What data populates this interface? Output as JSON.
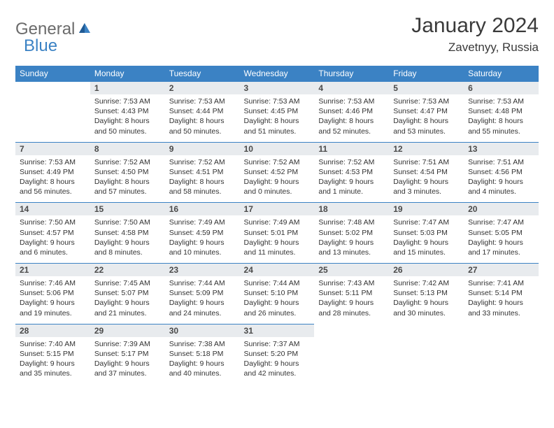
{
  "logo": {
    "name": "General",
    "accent": "Blue"
  },
  "title": "January 2024",
  "location": "Zavetnyy, Russia",
  "colors": {
    "header_bg": "#3b82c4",
    "header_fg": "#ffffff",
    "daynum_bg": "#e8ebee",
    "border": "#3b82c4",
    "logo_gray": "#6b6b6b",
    "logo_blue": "#3b82c4",
    "text": "#3a3a3a"
  },
  "day_headers": [
    "Sunday",
    "Monday",
    "Tuesday",
    "Wednesday",
    "Thursday",
    "Friday",
    "Saturday"
  ],
  "weeks": [
    [
      null,
      {
        "num": "1",
        "sunrise": "Sunrise: 7:53 AM",
        "sunset": "Sunset: 4:43 PM",
        "daylight1": "Daylight: 8 hours",
        "daylight2": "and 50 minutes."
      },
      {
        "num": "2",
        "sunrise": "Sunrise: 7:53 AM",
        "sunset": "Sunset: 4:44 PM",
        "daylight1": "Daylight: 8 hours",
        "daylight2": "and 50 minutes."
      },
      {
        "num": "3",
        "sunrise": "Sunrise: 7:53 AM",
        "sunset": "Sunset: 4:45 PM",
        "daylight1": "Daylight: 8 hours",
        "daylight2": "and 51 minutes."
      },
      {
        "num": "4",
        "sunrise": "Sunrise: 7:53 AM",
        "sunset": "Sunset: 4:46 PM",
        "daylight1": "Daylight: 8 hours",
        "daylight2": "and 52 minutes."
      },
      {
        "num": "5",
        "sunrise": "Sunrise: 7:53 AM",
        "sunset": "Sunset: 4:47 PM",
        "daylight1": "Daylight: 8 hours",
        "daylight2": "and 53 minutes."
      },
      {
        "num": "6",
        "sunrise": "Sunrise: 7:53 AM",
        "sunset": "Sunset: 4:48 PM",
        "daylight1": "Daylight: 8 hours",
        "daylight2": "and 55 minutes."
      }
    ],
    [
      {
        "num": "7",
        "sunrise": "Sunrise: 7:53 AM",
        "sunset": "Sunset: 4:49 PM",
        "daylight1": "Daylight: 8 hours",
        "daylight2": "and 56 minutes."
      },
      {
        "num": "8",
        "sunrise": "Sunrise: 7:52 AM",
        "sunset": "Sunset: 4:50 PM",
        "daylight1": "Daylight: 8 hours",
        "daylight2": "and 57 minutes."
      },
      {
        "num": "9",
        "sunrise": "Sunrise: 7:52 AM",
        "sunset": "Sunset: 4:51 PM",
        "daylight1": "Daylight: 8 hours",
        "daylight2": "and 58 minutes."
      },
      {
        "num": "10",
        "sunrise": "Sunrise: 7:52 AM",
        "sunset": "Sunset: 4:52 PM",
        "daylight1": "Daylight: 9 hours",
        "daylight2": "and 0 minutes."
      },
      {
        "num": "11",
        "sunrise": "Sunrise: 7:52 AM",
        "sunset": "Sunset: 4:53 PM",
        "daylight1": "Daylight: 9 hours",
        "daylight2": "and 1 minute."
      },
      {
        "num": "12",
        "sunrise": "Sunrise: 7:51 AM",
        "sunset": "Sunset: 4:54 PM",
        "daylight1": "Daylight: 9 hours",
        "daylight2": "and 3 minutes."
      },
      {
        "num": "13",
        "sunrise": "Sunrise: 7:51 AM",
        "sunset": "Sunset: 4:56 PM",
        "daylight1": "Daylight: 9 hours",
        "daylight2": "and 4 minutes."
      }
    ],
    [
      {
        "num": "14",
        "sunrise": "Sunrise: 7:50 AM",
        "sunset": "Sunset: 4:57 PM",
        "daylight1": "Daylight: 9 hours",
        "daylight2": "and 6 minutes."
      },
      {
        "num": "15",
        "sunrise": "Sunrise: 7:50 AM",
        "sunset": "Sunset: 4:58 PM",
        "daylight1": "Daylight: 9 hours",
        "daylight2": "and 8 minutes."
      },
      {
        "num": "16",
        "sunrise": "Sunrise: 7:49 AM",
        "sunset": "Sunset: 4:59 PM",
        "daylight1": "Daylight: 9 hours",
        "daylight2": "and 10 minutes."
      },
      {
        "num": "17",
        "sunrise": "Sunrise: 7:49 AM",
        "sunset": "Sunset: 5:01 PM",
        "daylight1": "Daylight: 9 hours",
        "daylight2": "and 11 minutes."
      },
      {
        "num": "18",
        "sunrise": "Sunrise: 7:48 AM",
        "sunset": "Sunset: 5:02 PM",
        "daylight1": "Daylight: 9 hours",
        "daylight2": "and 13 minutes."
      },
      {
        "num": "19",
        "sunrise": "Sunrise: 7:47 AM",
        "sunset": "Sunset: 5:03 PM",
        "daylight1": "Daylight: 9 hours",
        "daylight2": "and 15 minutes."
      },
      {
        "num": "20",
        "sunrise": "Sunrise: 7:47 AM",
        "sunset": "Sunset: 5:05 PM",
        "daylight1": "Daylight: 9 hours",
        "daylight2": "and 17 minutes."
      }
    ],
    [
      {
        "num": "21",
        "sunrise": "Sunrise: 7:46 AM",
        "sunset": "Sunset: 5:06 PM",
        "daylight1": "Daylight: 9 hours",
        "daylight2": "and 19 minutes."
      },
      {
        "num": "22",
        "sunrise": "Sunrise: 7:45 AM",
        "sunset": "Sunset: 5:07 PM",
        "daylight1": "Daylight: 9 hours",
        "daylight2": "and 21 minutes."
      },
      {
        "num": "23",
        "sunrise": "Sunrise: 7:44 AM",
        "sunset": "Sunset: 5:09 PM",
        "daylight1": "Daylight: 9 hours",
        "daylight2": "and 24 minutes."
      },
      {
        "num": "24",
        "sunrise": "Sunrise: 7:44 AM",
        "sunset": "Sunset: 5:10 PM",
        "daylight1": "Daylight: 9 hours",
        "daylight2": "and 26 minutes."
      },
      {
        "num": "25",
        "sunrise": "Sunrise: 7:43 AM",
        "sunset": "Sunset: 5:11 PM",
        "daylight1": "Daylight: 9 hours",
        "daylight2": "and 28 minutes."
      },
      {
        "num": "26",
        "sunrise": "Sunrise: 7:42 AM",
        "sunset": "Sunset: 5:13 PM",
        "daylight1": "Daylight: 9 hours",
        "daylight2": "and 30 minutes."
      },
      {
        "num": "27",
        "sunrise": "Sunrise: 7:41 AM",
        "sunset": "Sunset: 5:14 PM",
        "daylight1": "Daylight: 9 hours",
        "daylight2": "and 33 minutes."
      }
    ],
    [
      {
        "num": "28",
        "sunrise": "Sunrise: 7:40 AM",
        "sunset": "Sunset: 5:15 PM",
        "daylight1": "Daylight: 9 hours",
        "daylight2": "and 35 minutes."
      },
      {
        "num": "29",
        "sunrise": "Sunrise: 7:39 AM",
        "sunset": "Sunset: 5:17 PM",
        "daylight1": "Daylight: 9 hours",
        "daylight2": "and 37 minutes."
      },
      {
        "num": "30",
        "sunrise": "Sunrise: 7:38 AM",
        "sunset": "Sunset: 5:18 PM",
        "daylight1": "Daylight: 9 hours",
        "daylight2": "and 40 minutes."
      },
      {
        "num": "31",
        "sunrise": "Sunrise: 7:37 AM",
        "sunset": "Sunset: 5:20 PM",
        "daylight1": "Daylight: 9 hours",
        "daylight2": "and 42 minutes."
      },
      null,
      null,
      null
    ]
  ]
}
